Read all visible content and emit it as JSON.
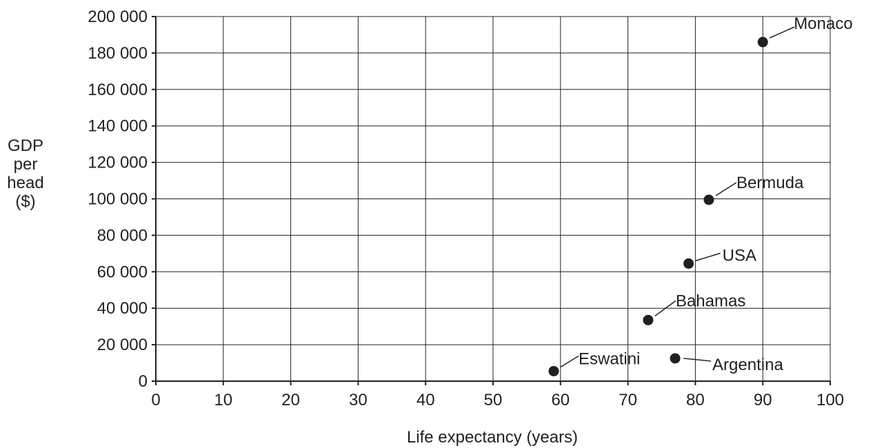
{
  "chart_data": {
    "type": "scatter",
    "xlabel": "Life expectancy (years)",
    "ylabel_lines": [
      "GDP",
      "per",
      "head",
      "($)"
    ],
    "xlim": [
      0,
      100
    ],
    "ylim": [
      0,
      200000
    ],
    "x_ticks": [
      0,
      10,
      20,
      30,
      40,
      50,
      60,
      70,
      80,
      90,
      100
    ],
    "y_ticks": [
      0,
      20000,
      40000,
      60000,
      80000,
      100000,
      120000,
      140000,
      160000,
      180000,
      200000
    ],
    "x_tick_labels": [
      "0",
      "10",
      "20",
      "30",
      "40",
      "50",
      "60",
      "70",
      "80",
      "90",
      "100"
    ],
    "y_tick_labels": [
      "0",
      "20 000",
      "40 000",
      "60 000",
      "80 000",
      "100 000",
      "120 000",
      "140 000",
      "160 000",
      "180 000",
      "200 000"
    ],
    "grid": true,
    "points": [
      {
        "label": "Monaco",
        "x": 90,
        "y": 186000
      },
      {
        "label": "Bermuda",
        "x": 82,
        "y": 99500
      },
      {
        "label": "USA",
        "x": 79,
        "y": 64500
      },
      {
        "label": "Bahamas",
        "x": 73,
        "y": 33500
      },
      {
        "label": "Eswatini",
        "x": 59,
        "y": 5500
      },
      {
        "label": "Argentina",
        "x": 77,
        "y": 12500
      }
    ]
  }
}
